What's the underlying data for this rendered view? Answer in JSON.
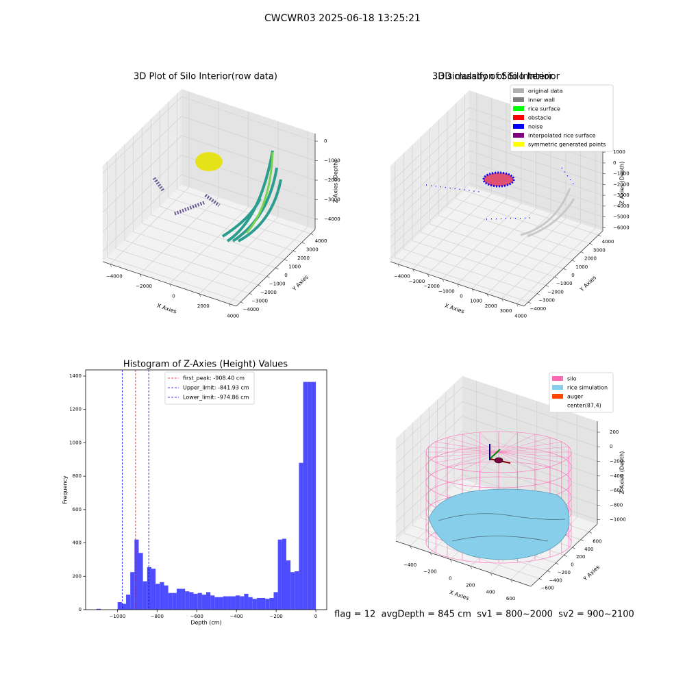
{
  "title": "CWCWR03 2025-06-18 13:25:21",
  "footer": "flag = 12  avgDepth = 845 cm  sv1 = 800~2000  sv2 = 900~2100",
  "chart_data": [
    {
      "type": "scatter3d",
      "title": "3D Plot of Silo Interior(row data)",
      "xlabel": "X Axies",
      "ylabel": "Y Axies",
      "zlabel": "Z Axies (Depth)",
      "xlim": [
        -4500,
        4500
      ],
      "ylim": [
        -4500,
        4500
      ],
      "zlim": [
        -4530,
        390
      ],
      "xticks": [
        {
          "value": -4000,
          "label": "−4000"
        },
        {
          "value": -2000,
          "label": "−2000"
        },
        0,
        2000,
        4000
      ],
      "yticks": [
        {
          "value": -4000,
          "label": "−4000"
        },
        {
          "value": -3000,
          "label": "−3000"
        },
        {
          "value": -2000,
          "label": "−2000"
        },
        {
          "value": -1000,
          "label": "−1000"
        },
        0,
        1000,
        2000,
        3000,
        4000
      ],
      "zticks": [
        0,
        {
          "value": -1000,
          "label": "−1000"
        },
        {
          "value": -2000,
          "label": "−2000"
        },
        {
          "value": -3000,
          "label": "−3000"
        },
        {
          "value": -4000,
          "label": "−4000"
        }
      ],
      "grid": true
    },
    {
      "type": "scatter3d",
      "title": "3D classify of Silo Interior",
      "xlabel": "X Axies",
      "ylabel": "Y Axies",
      "zlabel": "Z Axies (Depth)",
      "xlim": [
        -4500,
        4500
      ],
      "ylim": [
        -4500,
        4500
      ],
      "zlim": [
        -6300,
        2600
      ],
      "xticks": [
        {
          "value": -4000,
          "label": "−4000"
        },
        {
          "value": -3000,
          "label": "−3000"
        },
        {
          "value": -2000,
          "label": "−2000"
        },
        {
          "value": -1000,
          "label": "−1000"
        },
        0,
        1000,
        2000,
        3000,
        4000
      ],
      "yticks": [
        {
          "value": -4000,
          "label": "−4000"
        },
        {
          "value": -3000,
          "label": "−3000"
        },
        {
          "value": -2000,
          "label": "−2000"
        },
        {
          "value": -1000,
          "label": "−1000"
        },
        0,
        1000,
        2000,
        3000,
        4000
      ],
      "zticks": [
        1000,
        0,
        {
          "value": -1000,
          "label": "−1000"
        },
        {
          "value": -2000,
          "label": "−2000"
        },
        {
          "value": -3000,
          "label": "−3000"
        },
        {
          "value": -4000,
          "label": "−4000"
        },
        {
          "value": -5000,
          "label": "−5000"
        },
        {
          "value": -6000,
          "label": "−6000"
        }
      ],
      "grid": true,
      "legend_loc": "upper right",
      "legend": [
        {
          "name": "original data",
          "color": "#b0b0b0"
        },
        {
          "name": "inner wall",
          "color": "#808080"
        },
        {
          "name": "rice surface",
          "color": "#00ff00"
        },
        {
          "name": "obstacle",
          "color": "#ff0000"
        },
        {
          "name": "noise",
          "color": "#0000ff"
        },
        {
          "name": "interpolated rice surface",
          "color": "#800080"
        },
        {
          "name": "symmetric generated points",
          "color": "#ffff00"
        }
      ]
    },
    {
      "type": "histogram",
      "title": "Histogram of Z-Axies (Height) Values",
      "xlabel": "Depth (cm)",
      "ylabel": "Frequency",
      "color": "#4d4dff",
      "bins": [
        -1105,
        -1083.75,
        -1062.5,
        -1041.25,
        -1020,
        -998.75,
        -977.5,
        -956.25,
        -935,
        -913.75,
        -892.5,
        -871.25,
        -850,
        -828.75,
        -807.5,
        -786.25,
        -765,
        -743.75,
        -722.5,
        -701.25,
        -680,
        -658.75,
        -637.5,
        -616.25,
        -595,
        -573.75,
        -552.5,
        -531.25,
        -510,
        -488.75,
        -467.5,
        -446.25,
        -425,
        -403.75,
        -382.5,
        -361.25,
        -340,
        -318.75,
        -297.5,
        -276.25,
        -255,
        -233.75,
        -212.5,
        -191.25,
        -170,
        -148.75,
        -127.5,
        -106.25,
        -85,
        -63.75,
        -42.5,
        -21.25,
        0
      ],
      "counts": [
        5,
        0,
        0,
        0,
        0,
        45,
        35,
        90,
        225,
        420,
        340,
        170,
        255,
        245,
        155,
        165,
        145,
        100,
        100,
        125,
        125,
        110,
        105,
        95,
        100,
        90,
        105,
        85,
        75,
        75,
        80,
        80,
        80,
        85,
        80,
        95,
        75,
        65,
        70,
        70,
        65,
        70,
        105,
        420,
        425,
        295,
        225,
        230,
        880,
        1365,
        1365,
        1365
      ],
      "xlim": [
        -1160,
        55
      ],
      "ylim": [
        0,
        1437
      ],
      "xticks": [
        {
          "value": -1000,
          "label": "−1000"
        },
        {
          "value": -800,
          "label": "−800"
        },
        {
          "value": -600,
          "label": "−600"
        },
        {
          "value": -400,
          "label": "−400"
        },
        {
          "value": -200,
          "label": "−200"
        },
        0
      ],
      "yticks": [
        0,
        200,
        400,
        600,
        800,
        1000,
        1200,
        1400
      ],
      "legend_loc": "upper center",
      "vlines": [
        {
          "name": "first_peak: -908.40 cm",
          "value": -908.4,
          "color": "#ff0000"
        },
        {
          "name": "Upper_limit: -841.93 cm",
          "value": -841.93,
          "color": "#0000ff"
        },
        {
          "name": "Lower_limit: -974.86 cm",
          "value": -974.86,
          "color": "#0000ff"
        }
      ]
    },
    {
      "type": "surface3d",
      "title": "3D simulation of Silo Interior",
      "xlabel": "X Axies",
      "ylabel": "Y Axies",
      "zlabel": "Z Axies (Depth)",
      "xlim": [
        -540,
        800
      ],
      "ylim": [
        -800,
        800
      ],
      "zlim": [
        -1060,
        350
      ],
      "xticks": [
        {
          "value": -400,
          "label": "−400"
        },
        {
          "value": -200,
          "label": "−200"
        },
        0,
        200,
        400,
        600
      ],
      "yticks": [
        {
          "value": -600,
          "label": "−600"
        },
        {
          "value": -400,
          "label": "−400"
        },
        {
          "value": -200,
          "label": "−200"
        },
        0,
        200,
        400,
        600
      ],
      "zticks": [
        200,
        0,
        {
          "value": -200,
          "label": "−200"
        },
        {
          "value": -400,
          "label": "−400"
        },
        {
          "value": -600,
          "label": "−600"
        },
        {
          "value": -800,
          "label": "−800"
        },
        {
          "value": -1000,
          "label": "−1000"
        }
      ],
      "grid": true,
      "legend_loc": "upper right",
      "legend": [
        {
          "name": "silo",
          "color": "#ff69b4"
        },
        {
          "name": "rice simulation",
          "color": "#87ceeb"
        },
        {
          "name": "auger",
          "color": "#ff4500"
        },
        {
          "name": "center(87,4)",
          "color": "#ffffff"
        }
      ]
    }
  ]
}
